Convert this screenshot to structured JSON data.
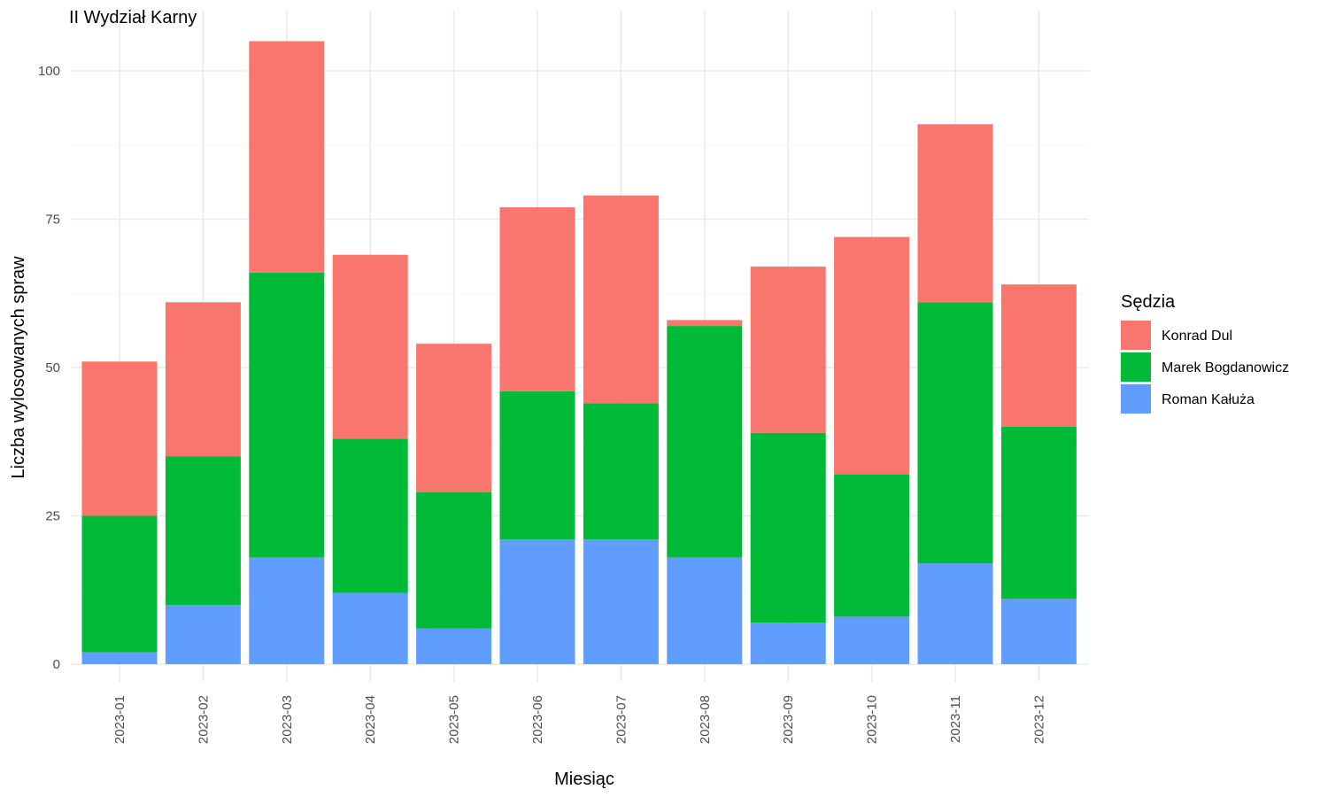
{
  "chart_data": {
    "type": "bar",
    "stacked": true,
    "title": "II Wydział Karny",
    "xlabel": "Miesiąc",
    "ylabel": "Liczba wylosowanych spraw",
    "ylim": [
      0,
      105
    ],
    "yticks": [
      0,
      25,
      50,
      75,
      100
    ],
    "grid": true,
    "legend_position": "right",
    "legend_title": "Sędzia",
    "categories": [
      "2023-01",
      "2023-02",
      "2023-03",
      "2023-04",
      "2023-05",
      "2023-06",
      "2023-07",
      "2023-08",
      "2023-09",
      "2023-10",
      "2023-11",
      "2023-12"
    ],
    "series": [
      {
        "name": "Roman Kałuża",
        "color": "#619CFF",
        "values": [
          2,
          10,
          18,
          12,
          6,
          21,
          21,
          18,
          7,
          8,
          17,
          11
        ]
      },
      {
        "name": "Marek Bogdanowicz",
        "color": "#00BA38",
        "values": [
          23,
          25,
          48,
          26,
          23,
          25,
          23,
          39,
          32,
          24,
          44,
          29
        ]
      },
      {
        "name": "Konrad Dul",
        "color": "#F8766D",
        "values": [
          26,
          26,
          39,
          31,
          25,
          31,
          35,
          1,
          28,
          40,
          30,
          24
        ]
      }
    ],
    "legend_order": [
      "Konrad Dul",
      "Marek Bogdanowicz",
      "Roman Kałuża"
    ]
  }
}
